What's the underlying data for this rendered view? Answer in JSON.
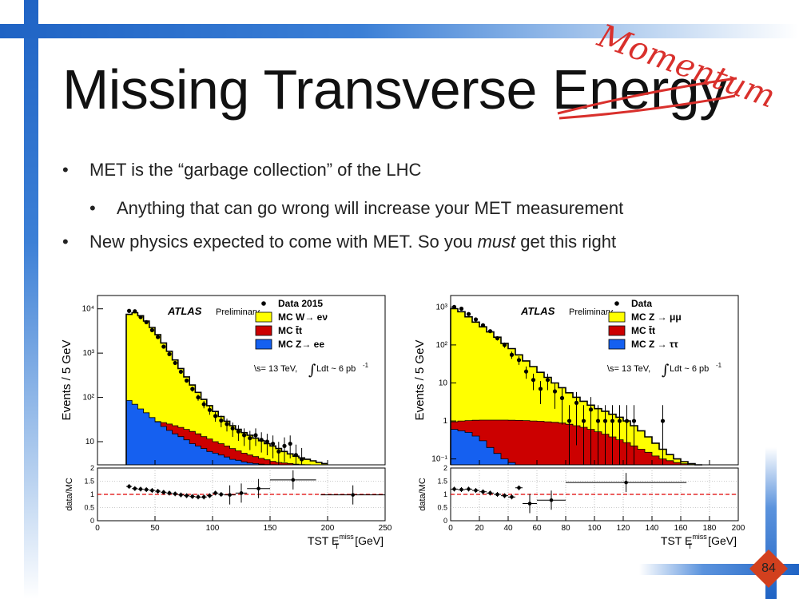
{
  "slide": {
    "title_main": "Missing Transverse",
    "title_crossed": "Energy",
    "handwritten_replacement": "Momentum",
    "page_number": "84",
    "accent_color": "#1f63c4",
    "correction_color": "#d9302c"
  },
  "bullets": [
    {
      "text": "MET is the “garbage collection” of the LHC",
      "level": 1
    },
    {
      "text": "Anything that can go wrong will increase your MET measurement",
      "level": 2
    },
    {
      "text_before": "New physics expected to come with MET. So you ",
      "text_em": "must",
      "text_after": " get this right",
      "level": 1
    }
  ],
  "chart_data": [
    {
      "type": "histogram",
      "experiment": "ATLAS",
      "status": "Preliminary",
      "energy_label": "\\s= 13 TeV,",
      "lumi_label": "Ldt ~ 6 pb",
      "lumi_sup": "-1",
      "ylabel": "Events / 5 GeV",
      "ratio_ylabel": "data/MC",
      "xlabel_pre": "TST E",
      "xlabel_sub": "T",
      "xlabel_sup": "miss",
      "xlabel_post": " [GeV]",
      "xlim": [
        0,
        250
      ],
      "ylim_log": [
        3,
        20000
      ],
      "ratio_ylim": [
        0,
        2
      ],
      "x_ticks": [
        0,
        50,
        100,
        150,
        200,
        250
      ],
      "y_ticks": [
        {
          "v": 10,
          "label": "10"
        },
        {
          "v": 100,
          "label": "10²"
        },
        {
          "v": 1000,
          "label": "10³"
        },
        {
          "v": 10000,
          "label": "10⁴"
        }
      ],
      "ratio_ticks": [
        "0",
        "0.5",
        "1",
        "1.5",
        "2"
      ],
      "legend": [
        {
          "label": "Data 2015",
          "kind": "marker"
        },
        {
          "label": "MC W→ eν",
          "kind": "box",
          "color": "#ffff00"
        },
        {
          "label": "MC t̄t",
          "kind": "box",
          "color": "#cc0000"
        },
        {
          "label": "MC Z→ ee",
          "kind": "box",
          "color": "#1560f0"
        }
      ],
      "bin_width": 5,
      "bin_start": 25,
      "stack": [
        {
          "name": "MC Z→ ee",
          "color": "#1560f0",
          "values": [
            85,
            70,
            55,
            45,
            35,
            28,
            22,
            18,
            15,
            13,
            11,
            9,
            8,
            7,
            6,
            5.5,
            5,
            4.5,
            4,
            3.8,
            3.5,
            3.3,
            3.2,
            3.1,
            3.05,
            3.02,
            3.01,
            3,
            3,
            3,
            3,
            3,
            3,
            3,
            3
          ]
        },
        {
          "name": "MC t̄t",
          "color": "#cc0000",
          "values": [
            28,
            29,
            30,
            30,
            29.5,
            28.5,
            27,
            25,
            23,
            21,
            19,
            17,
            15,
            13,
            11.5,
            10,
            9,
            8,
            7,
            6.2,
            5.5,
            5,
            4.6,
            4.2,
            3.9,
            3.6,
            3.4,
            3.3,
            3.2,
            3.1,
            3.05,
            3.02,
            3.01,
            3,
            3
          ]
        },
        {
          "name": "MC W→ eν",
          "color": "#ffff00",
          "values": [
            7500,
            8200,
            7000,
            5300,
            3800,
            2600,
            1700,
            1100,
            700,
            450,
            290,
            190,
            130,
            90,
            65,
            48,
            37,
            29,
            23,
            19,
            16,
            14,
            12,
            10.5,
            9,
            8,
            7,
            6,
            5.3,
            4.7,
            4.3,
            4,
            3.7,
            3.4,
            3.2
          ]
        },
        {
          "name": "MC total",
          "values": [
            7500,
            8200,
            7000,
            5300,
            3800,
            2600,
            1700,
            1100,
            700,
            450,
            290,
            190,
            130,
            90,
            65,
            48,
            37,
            29,
            23,
            19,
            16,
            14,
            12,
            10.5,
            9,
            8,
            7,
            6,
            5.3,
            4.7,
            4.3,
            4,
            3.7,
            3.4,
            3.2
          ]
        }
      ],
      "data_points": [
        {
          "x": 27.5,
          "y": 9000
        },
        {
          "x": 32.5,
          "y": 8800
        },
        {
          "x": 37.5,
          "y": 6500
        },
        {
          "x": 42.5,
          "y": 5000
        },
        {
          "x": 47.5,
          "y": 3300
        },
        {
          "x": 52.5,
          "y": 2300
        },
        {
          "x": 57.5,
          "y": 1400
        },
        {
          "x": 62.5,
          "y": 950
        },
        {
          "x": 67.5,
          "y": 600
        },
        {
          "x": 72.5,
          "y": 380
        },
        {
          "x": 77.5,
          "y": 240
        },
        {
          "x": 82.5,
          "y": 155
        },
        {
          "x": 87.5,
          "y": 100
        },
        {
          "x": 92.5,
          "y": 70
        },
        {
          "x": 97.5,
          "y": 52
        },
        {
          "x": 102.5,
          "y": 38
        },
        {
          "x": 107.5,
          "y": 30
        },
        {
          "x": 112.5,
          "y": 25
        },
        {
          "x": 117.5,
          "y": 20
        },
        {
          "x": 122.5,
          "y": 17
        },
        {
          "x": 127.5,
          "y": 14
        },
        {
          "x": 132.5,
          "y": 12
        },
        {
          "x": 137.5,
          "y": 14
        },
        {
          "x": 142.5,
          "y": 11
        },
        {
          "x": 147.5,
          "y": 10
        },
        {
          "x": 152.5,
          "y": 9
        },
        {
          "x": 157.5,
          "y": 6
        },
        {
          "x": 162.5,
          "y": 8
        },
        {
          "x": 167.5,
          "y": 9
        },
        {
          "x": 172.5,
          "y": 5
        },
        {
          "x": 177.5,
          "y": 4
        }
      ],
      "ratio_points": [
        {
          "x": 27.5,
          "y": 1.3,
          "xerr": 2.5
        },
        {
          "x": 32.5,
          "y": 1.22,
          "xerr": 2.5
        },
        {
          "x": 37.5,
          "y": 1.2,
          "xerr": 2.5
        },
        {
          "x": 42.5,
          "y": 1.18,
          "xerr": 2.5
        },
        {
          "x": 47.5,
          "y": 1.15,
          "xerr": 2.5
        },
        {
          "x": 52.5,
          "y": 1.12,
          "xerr": 2.5
        },
        {
          "x": 57.5,
          "y": 1.08,
          "xerr": 2.5
        },
        {
          "x": 62.5,
          "y": 1.05,
          "xerr": 2.5
        },
        {
          "x": 67.5,
          "y": 1.02,
          "xerr": 2.5
        },
        {
          "x": 72.5,
          "y": 0.98,
          "xerr": 2.5
        },
        {
          "x": 77.5,
          "y": 0.95,
          "xerr": 2.5
        },
        {
          "x": 82.5,
          "y": 0.92,
          "xerr": 2.5
        },
        {
          "x": 87.5,
          "y": 0.9,
          "xerr": 2.5
        },
        {
          "x": 92.5,
          "y": 0.9,
          "xerr": 2.5
        },
        {
          "x": 97.5,
          "y": 0.95,
          "xerr": 2.5
        },
        {
          "x": 102.5,
          "y": 1.05,
          "xerr": 2.5
        },
        {
          "x": 107.5,
          "y": 1.0,
          "xerr": 2.5
        },
        {
          "x": 115,
          "y": 0.98,
          "xerr": 5
        },
        {
          "x": 125,
          "y": 1.05,
          "xerr": 5
        },
        {
          "x": 140,
          "y": 1.22,
          "xerr": 10
        },
        {
          "x": 170,
          "y": 1.55,
          "xerr": 20
        },
        {
          "x": 222,
          "y": 0.98,
          "xerr": 28
        }
      ]
    },
    {
      "type": "histogram",
      "experiment": "ATLAS",
      "status": "Preliminary",
      "energy_label": "\\s= 13 TeV,",
      "lumi_label": "Ldt ~ 6 pb",
      "lumi_sup": "-1",
      "ylabel": "Events / 5 GeV",
      "ratio_ylabel": "data/MC",
      "xlabel_pre": "TST E",
      "xlabel_sub": "T",
      "xlabel_sup": "miss",
      "xlabel_post": " [GeV]",
      "xlim": [
        0,
        200
      ],
      "ylim_log": [
        0.07,
        2000
      ],
      "ratio_ylim": [
        0,
        2
      ],
      "x_ticks": [
        0,
        20,
        40,
        60,
        80,
        100,
        120,
        140,
        160,
        180,
        200
      ],
      "y_ticks": [
        {
          "v": 0.1,
          "label": "10⁻¹"
        },
        {
          "v": 1,
          "label": "1"
        },
        {
          "v": 10,
          "label": "10"
        },
        {
          "v": 100,
          "label": "10²"
        },
        {
          "v": 1000,
          "label": "10³"
        }
      ],
      "ratio_ticks": [
        "0",
        "0.5",
        "1",
        "1.5",
        "2"
      ],
      "legend": [
        {
          "label": "Data",
          "kind": "marker"
        },
        {
          "label": "MC Z  →  μμ",
          "kind": "box",
          "color": "#ffff00"
        },
        {
          "label": "MC t̄t",
          "kind": "box",
          "color": "#cc0000"
        },
        {
          "label": "MC Z  →  ττ",
          "kind": "box",
          "color": "#1560f0"
        }
      ],
      "bin_width": 5,
      "bin_start": 0,
      "stack": [
        {
          "name": "MC Z  →  ττ",
          "color": "#1560f0",
          "values": [
            0.6,
            0.55,
            0.5,
            0.4,
            0.3,
            0.2,
            0.14,
            0.1,
            0.08,
            0.07,
            0.07,
            0.07,
            0.07,
            0.07,
            0.07,
            0.07,
            0.07,
            0.07,
            0.07,
            0.07,
            0.07,
            0.07,
            0.07,
            0.07,
            0.07,
            0.07,
            0.07,
            0.07,
            0.07,
            0.07,
            0.07,
            0.07,
            0.07,
            0.07,
            0.07
          ]
        },
        {
          "name": "MC t̄t",
          "color": "#cc0000",
          "values": [
            0.95,
            1.0,
            1.02,
            1.04,
            1.05,
            1.05,
            1.05,
            1.05,
            1.04,
            1.03,
            1.02,
            1.0,
            0.98,
            0.95,
            0.92,
            0.88,
            0.82,
            0.75,
            0.68,
            0.6,
            0.52,
            0.45,
            0.38,
            0.32,
            0.27,
            0.22,
            0.18,
            0.15,
            0.12,
            0.1,
            0.09,
            0.08,
            0.075,
            0.07,
            0.07
          ]
        },
        {
          "name": "MC Z  →  μμ",
          "color": "#ffff00",
          "values": [
            900,
            750,
            550,
            400,
            300,
            220,
            160,
            110,
            80,
            55,
            38,
            27,
            19,
            14,
            10,
            7.5,
            5.5,
            4.2,
            3.3,
            2.6,
            2.1,
            1.8,
            1.5,
            1.25,
            1.0,
            0.75,
            0.55,
            0.38,
            0.26,
            0.18,
            0.13,
            0.1,
            0.085,
            0.075,
            0.07
          ]
        },
        {
          "name": "MC total",
          "values": [
            900,
            750,
            550,
            400,
            300,
            220,
            160,
            110,
            80,
            55,
            38,
            27,
            19,
            14,
            10,
            7.5,
            5.5,
            4.2,
            3.3,
            2.6,
            2.1,
            1.8,
            1.5,
            1.25,
            1.0,
            0.75,
            0.55,
            0.38,
            0.26,
            0.18,
            0.13,
            0.1,
            0.085,
            0.075,
            0.07
          ]
        }
      ],
      "data_points": [
        {
          "x": 2.5,
          "y": 1000
        },
        {
          "x": 7.5,
          "y": 900
        },
        {
          "x": 12.5,
          "y": 650
        },
        {
          "x": 17.5,
          "y": 470
        },
        {
          "x": 22.5,
          "y": 330
        },
        {
          "x": 27.5,
          "y": 230
        },
        {
          "x": 32.5,
          "y": 150
        },
        {
          "x": 37.5,
          "y": 100
        },
        {
          "x": 42.5,
          "y": 55
        },
        {
          "x": 47.5,
          "y": 40
        },
        {
          "x": 52.5,
          "y": 20
        },
        {
          "x": 57.5,
          "y": 12
        },
        {
          "x": 62.5,
          "y": 7
        },
        {
          "x": 67.5,
          "y": 12
        },
        {
          "x": 72.5,
          "y": 6
        },
        {
          "x": 77.5,
          "y": 4
        },
        {
          "x": 82.5,
          "y": 1
        },
        {
          "x": 87.5,
          "y": 3
        },
        {
          "x": 92.5,
          "y": 1
        },
        {
          "x": 97.5,
          "y": 2
        },
        {
          "x": 102.5,
          "y": 1
        },
        {
          "x": 107.5,
          "y": 1
        },
        {
          "x": 112.5,
          "y": 1
        },
        {
          "x": 117.5,
          "y": 1
        },
        {
          "x": 122.5,
          "y": 1
        },
        {
          "x": 127.5,
          "y": 1
        },
        {
          "x": 147.5,
          "y": 1
        }
      ],
      "ratio_points": [
        {
          "x": 2.5,
          "y": 1.2,
          "xerr": 2.5
        },
        {
          "x": 7.5,
          "y": 1.18,
          "xerr": 2.5
        },
        {
          "x": 12.5,
          "y": 1.2,
          "xerr": 2.5
        },
        {
          "x": 17.5,
          "y": 1.15,
          "xerr": 2.5
        },
        {
          "x": 22.5,
          "y": 1.1,
          "xerr": 2.5
        },
        {
          "x": 27.5,
          "y": 1.05,
          "xerr": 2.5
        },
        {
          "x": 32.5,
          "y": 1.0,
          "xerr": 2.5
        },
        {
          "x": 37.5,
          "y": 0.95,
          "xerr": 2.5
        },
        {
          "x": 42.5,
          "y": 0.9,
          "xerr": 2.5
        },
        {
          "x": 47.5,
          "y": 1.25,
          "xerr": 2.5
        },
        {
          "x": 55,
          "y": 0.65,
          "xerr": 5
        },
        {
          "x": 70,
          "y": 0.78,
          "xerr": 10
        },
        {
          "x": 122,
          "y": 1.45,
          "xerr": 42
        }
      ]
    }
  ]
}
